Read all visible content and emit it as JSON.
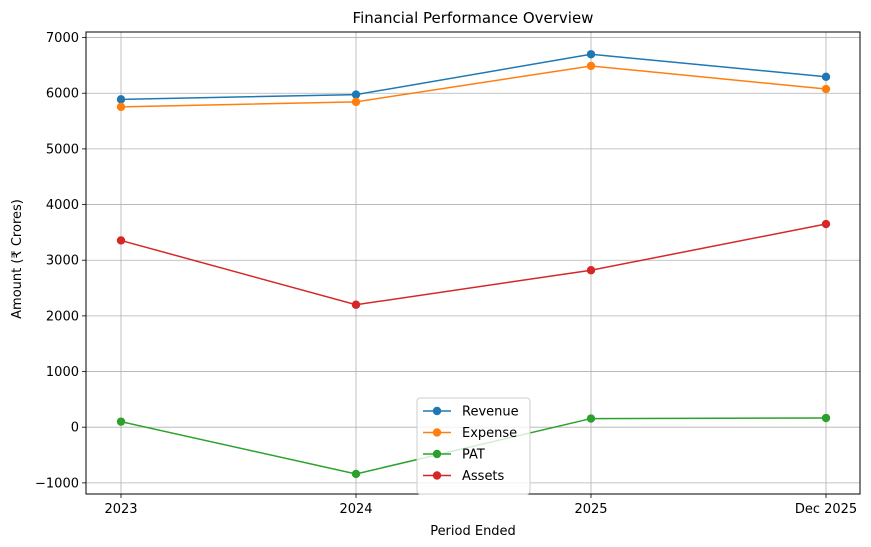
{
  "chart_data": {
    "type": "line",
    "title": "Financial Performance Overview",
    "xlabel": "Period Ended",
    "ylabel": "Amount (₹ Crores)",
    "categories": [
      "2023",
      "2024",
      "2025",
      "Dec 2025"
    ],
    "ylim": [
      -1200,
      7100
    ],
    "yticks": [
      -1000,
      0,
      1000,
      2000,
      3000,
      4000,
      5000,
      6000,
      7000
    ],
    "grid": true,
    "legend_position": "bottom-center",
    "series": [
      {
        "name": "Revenue",
        "color": "#1f77b4",
        "values": [
          5890,
          5975,
          6700,
          6295
        ]
      },
      {
        "name": "Expense",
        "color": "#ff7f0e",
        "values": [
          5755,
          5845,
          6490,
          6075
        ]
      },
      {
        "name": "PAT",
        "color": "#2ca02c",
        "values": [
          100,
          -840,
          155,
          165
        ]
      },
      {
        "name": "Assets",
        "color": "#d62728",
        "values": [
          3355,
          2200,
          2820,
          3650
        ]
      }
    ]
  }
}
